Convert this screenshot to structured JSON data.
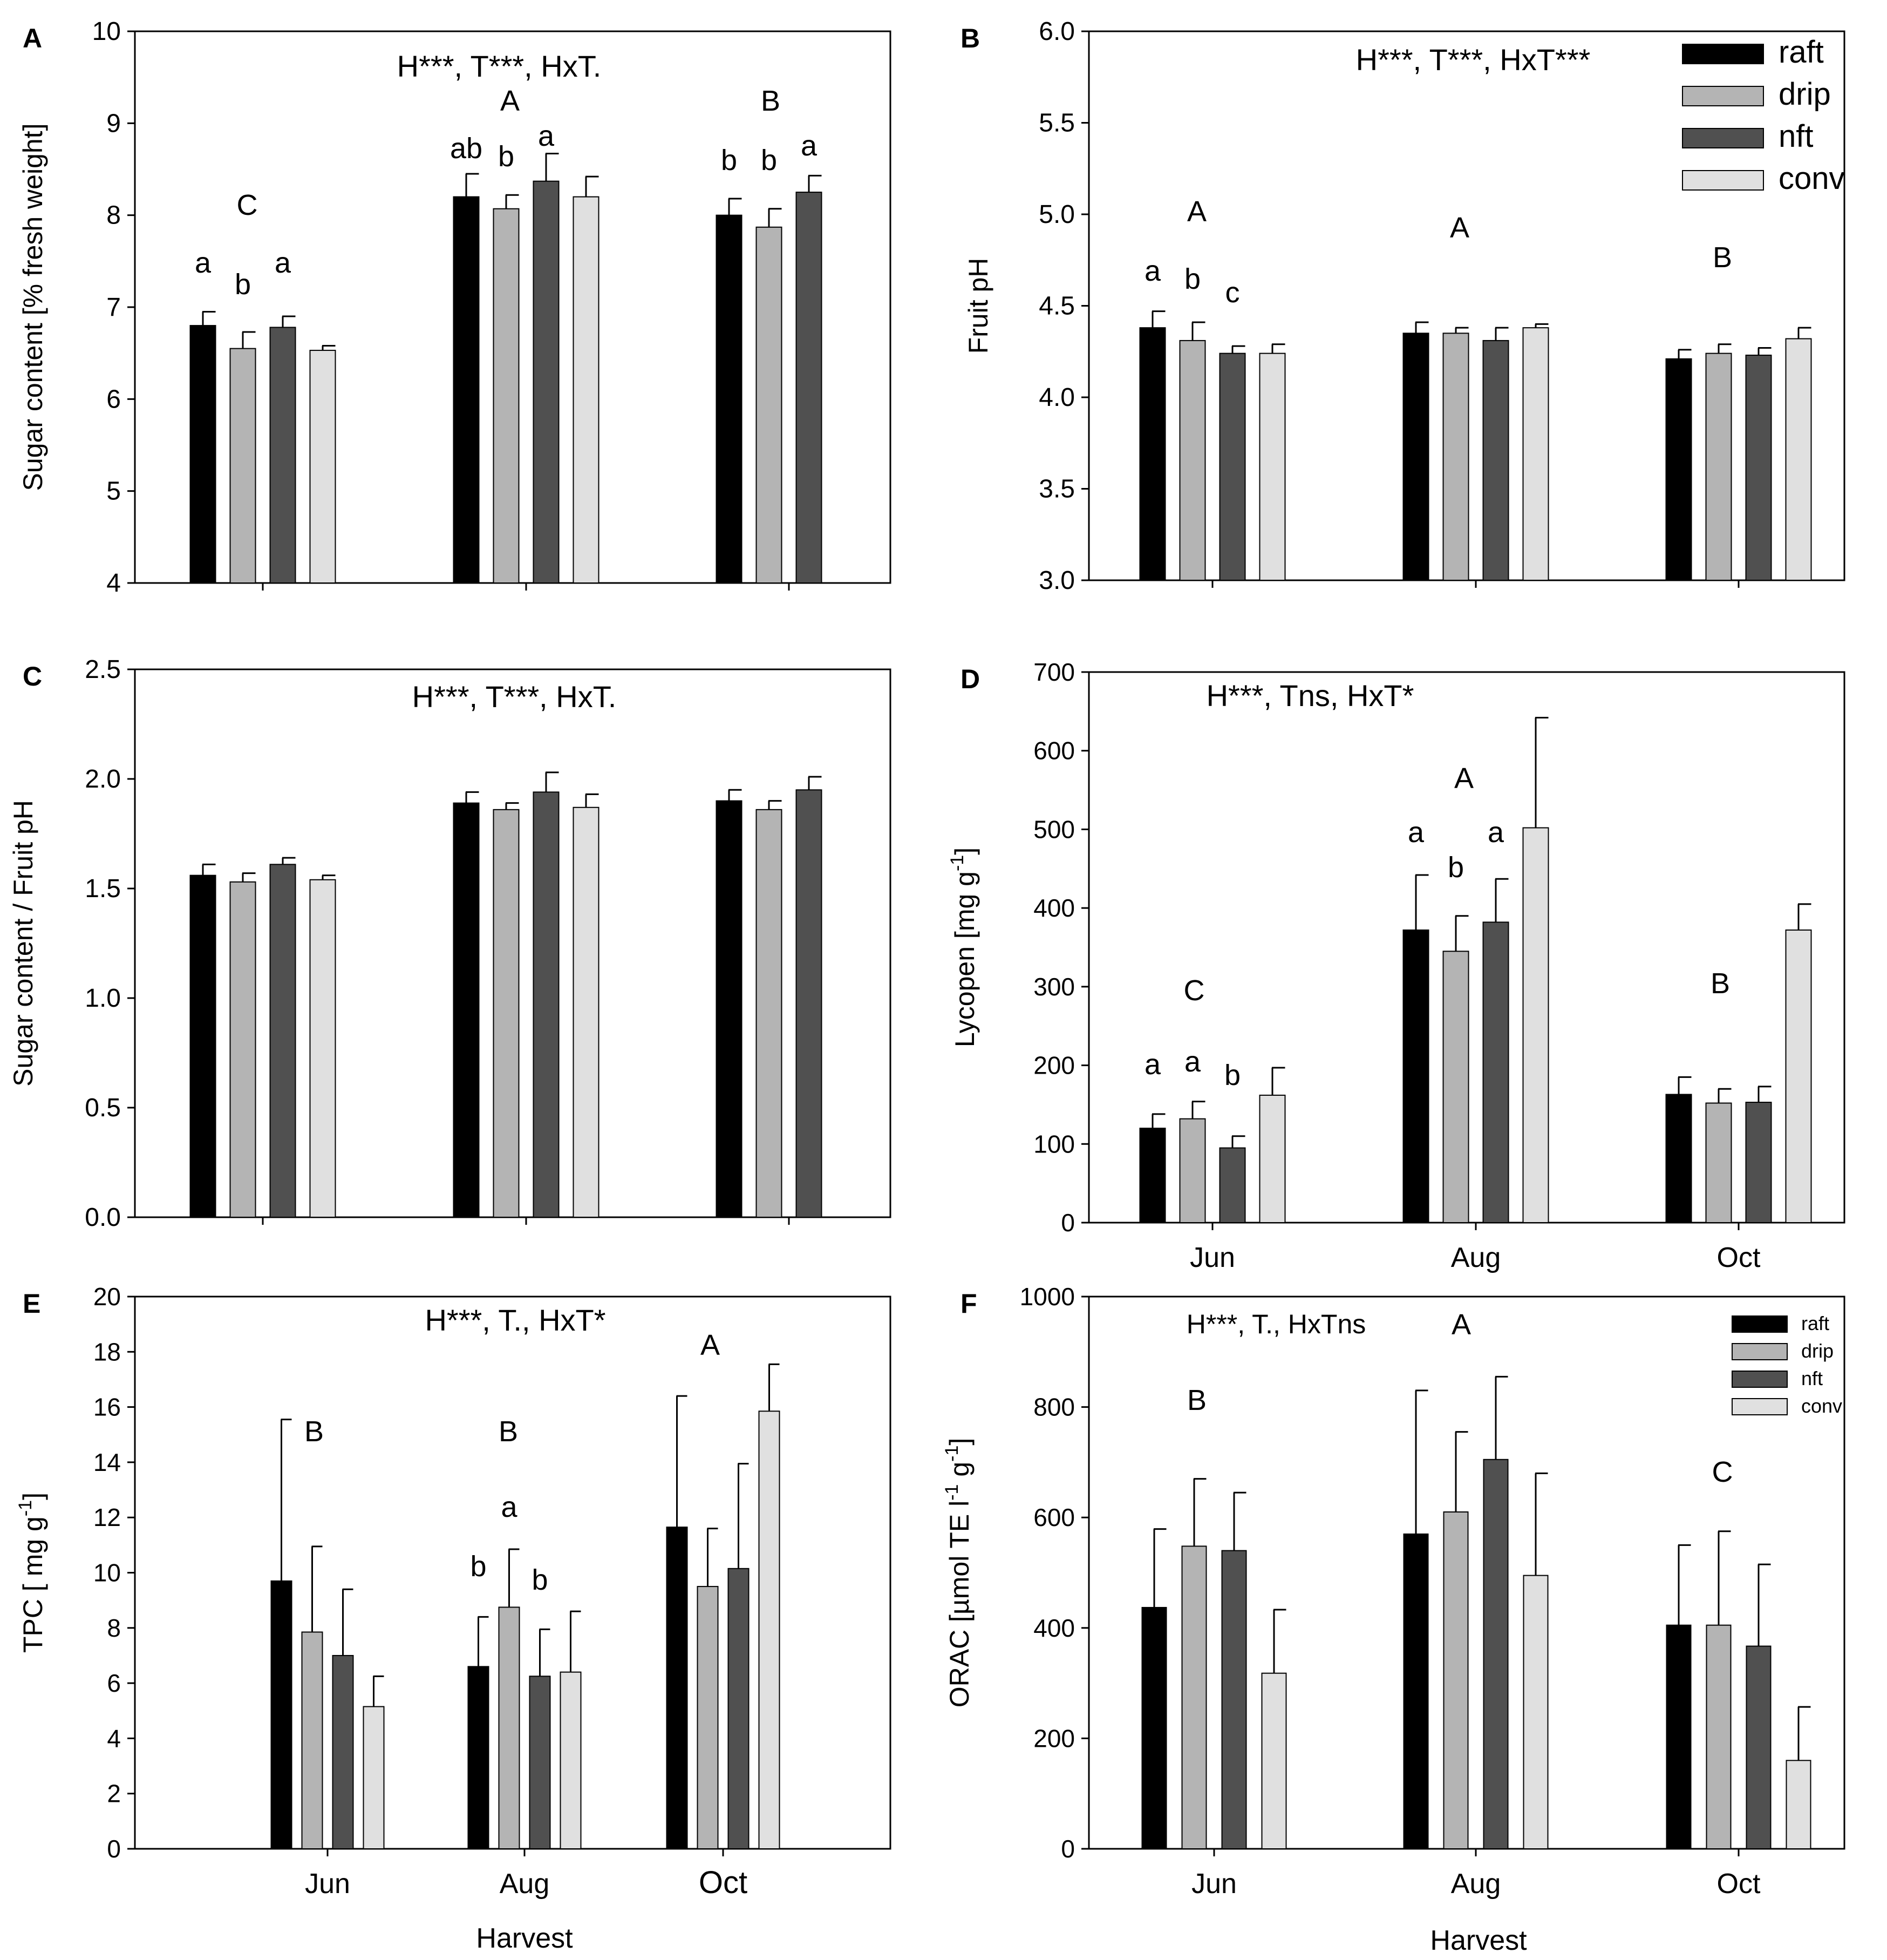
{
  "figure": {
    "panels_order": [
      "A",
      "B",
      "C",
      "D",
      "E",
      "F"
    ],
    "bottom_axis_label": "Harvest",
    "categories": [
      "Jun",
      "Aug",
      "Oct"
    ],
    "series_names": [
      "raft",
      "drip",
      "nft",
      "conv"
    ],
    "colors": {
      "raft": "#000000",
      "drip": "#b4b4b4",
      "nft": "#505050",
      "conv": "#e0e0e0"
    }
  },
  "chart_data": [
    {
      "panel": "A",
      "type": "bar",
      "panel_letter": "A",
      "title": "H***, T***, HxT.",
      "ylabel": "Sugar content [% fresh weight]",
      "ylim": [
        4,
        10
      ],
      "yticks": [
        "4",
        "5",
        "6",
        "7",
        "8",
        "9",
        "10"
      ],
      "categories": [
        "Jun",
        "Aug",
        "Oct"
      ],
      "show_xtick_labels": false,
      "legend": "none",
      "series": [
        {
          "name": "raft",
          "values": [
            6.8,
            8.2,
            8.0
          ],
          "errors": [
            0.15,
            0.25,
            0.18
          ]
        },
        {
          "name": "drip",
          "values": [
            6.55,
            8.07,
            7.87
          ],
          "errors": [
            0.18,
            0.15,
            0.2
          ]
        },
        {
          "name": "nft",
          "values": [
            6.78,
            8.37,
            8.25
          ],
          "errors": [
            0.12,
            0.3,
            0.18
          ]
        },
        {
          "name": "conv",
          "values": [
            6.53,
            8.2,
            null
          ],
          "errors": [
            0.05,
            0.22,
            null
          ]
        }
      ],
      "group_letters": [
        "C",
        "A",
        "B"
      ],
      "bar_letters": [
        [
          "a",
          "b",
          "a",
          ""
        ],
        [
          "ab",
          "b",
          "a",
          ""
        ],
        [
          "b",
          "b",
          "a",
          ""
        ]
      ]
    },
    {
      "panel": "B",
      "type": "bar",
      "panel_letter": "B",
      "title": "H***, T***, HxT***",
      "ylabel": "Fruit pH",
      "ylim": [
        3.0,
        6.0
      ],
      "yticks": [
        "3.0",
        "3.5",
        "4.0",
        "4.5",
        "5.0",
        "5.5",
        "6.0"
      ],
      "categories": [
        "Jun",
        "Aug",
        "Oct"
      ],
      "show_xtick_labels": false,
      "legend": "top-right",
      "series": [
        {
          "name": "raft",
          "values": [
            4.38,
            4.35,
            4.21
          ],
          "errors": [
            0.09,
            0.06,
            0.05
          ]
        },
        {
          "name": "drip",
          "values": [
            4.31,
            4.35,
            4.24
          ],
          "errors": [
            0.1,
            0.03,
            0.05
          ]
        },
        {
          "name": "nft",
          "values": [
            4.24,
            4.31,
            4.23
          ],
          "errors": [
            0.04,
            0.07,
            0.04
          ]
        },
        {
          "name": "conv",
          "values": [
            4.24,
            4.38,
            4.32
          ],
          "errors": [
            0.05,
            0.02,
            0.06
          ]
        }
      ],
      "group_letters": [
        "A",
        "A",
        "B"
      ],
      "bar_letters": [
        [
          "a",
          "b",
          "c",
          ""
        ],
        [
          "",
          "",
          "",
          ""
        ],
        [
          "",
          "",
          "",
          ""
        ]
      ]
    },
    {
      "panel": "C",
      "type": "bar",
      "panel_letter": "C",
      "title": "H***, T***, HxT.",
      "ylabel": "Sugar content / Fruit pH",
      "ylim": [
        0.0,
        2.5
      ],
      "yticks": [
        "0.0",
        "0.5",
        "1.0",
        "1.5",
        "2.0",
        "2.5"
      ],
      "categories": [
        "Jun",
        "Aug",
        "Oct"
      ],
      "show_xtick_labels": false,
      "legend": "none",
      "series": [
        {
          "name": "raft",
          "values": [
            1.56,
            1.89,
            1.9
          ],
          "errors": [
            0.05,
            0.05,
            0.05
          ]
        },
        {
          "name": "drip",
          "values": [
            1.53,
            1.86,
            1.86
          ],
          "errors": [
            0.04,
            0.03,
            0.04
          ]
        },
        {
          "name": "nft",
          "values": [
            1.61,
            1.94,
            1.95
          ],
          "errors": [
            0.03,
            0.09,
            0.06
          ]
        },
        {
          "name": "conv",
          "values": [
            1.54,
            1.87,
            null
          ],
          "errors": [
            0.02,
            0.06,
            null
          ]
        }
      ],
      "group_letters": [
        "",
        "",
        ""
      ],
      "bar_letters": [
        [
          "",
          "",
          "",
          ""
        ],
        [
          "",
          "",
          "",
          ""
        ],
        [
          "",
          "",
          "",
          ""
        ]
      ]
    },
    {
      "panel": "D",
      "type": "bar",
      "panel_letter": "D",
      "title": "H***, Tns, HxT*",
      "ylabel": "Lycopen [mg g-1]",
      "ylabel_base": "Lycopen [mg g",
      "ylabel_sup": "-1",
      "ylabel_end": "]",
      "ylim": [
        0,
        700
      ],
      "yticks": [
        "0",
        "100",
        "200",
        "300",
        "400",
        "500",
        "600",
        "700"
      ],
      "categories": [
        "Jun",
        "Aug",
        "Oct"
      ],
      "show_xtick_labels": true,
      "legend": "none",
      "series": [
        {
          "name": "raft",
          "values": [
            120,
            372,
            163
          ],
          "errors": [
            18,
            70,
            22
          ]
        },
        {
          "name": "drip",
          "values": [
            132,
            345,
            152
          ],
          "errors": [
            22,
            45,
            18
          ]
        },
        {
          "name": "nft",
          "values": [
            95,
            382,
            153
          ],
          "errors": [
            15,
            55,
            20
          ]
        },
        {
          "name": "conv",
          "values": [
            162,
            502,
            372
          ],
          "errors": [
            35,
            140,
            33
          ]
        }
      ],
      "group_letters": [
        "C",
        "A",
        "B"
      ],
      "bar_letters": [
        [
          "a",
          "a",
          "b",
          ""
        ],
        [
          "a",
          "b",
          "a",
          ""
        ],
        [
          "",
          "",
          "",
          ""
        ]
      ]
    },
    {
      "panel": "E",
      "type": "bar",
      "panel_letter": "E",
      "title": "H***, T., HxT*",
      "ylabel": "TPC [ mg g-1]",
      "ylabel_base": "TPC [ mg g",
      "ylabel_sup": "-1",
      "ylabel_end": "]",
      "ylim": [
        0,
        20
      ],
      "yticks": [
        "0",
        "2",
        "4",
        "6",
        "8",
        "10",
        "12",
        "14",
        "16",
        "18",
        "20"
      ],
      "categories": [
        "Jun",
        "Aug",
        "Oct"
      ],
      "show_xtick_labels": true,
      "legend": "none",
      "series": [
        {
          "name": "raft",
          "values": [
            9.7,
            6.6,
            11.65
          ],
          "errors": [
            5.85,
            1.8,
            4.75
          ]
        },
        {
          "name": "drip",
          "values": [
            7.85,
            8.75,
            9.5
          ],
          "errors": [
            3.1,
            2.1,
            2.1
          ]
        },
        {
          "name": "nft",
          "values": [
            7.0,
            6.25,
            10.15
          ],
          "errors": [
            2.4,
            1.7,
            3.8
          ]
        },
        {
          "name": "conv",
          "values": [
            5.15,
            6.4,
            15.85
          ],
          "errors": [
            1.1,
            2.2,
            1.7
          ]
        }
      ],
      "group_letters": [
        "B",
        "B",
        "A"
      ],
      "bar_letters": [
        [
          "",
          "",
          "",
          ""
        ],
        [
          "b",
          "a",
          "b",
          ""
        ],
        [
          "",
          "",
          "",
          ""
        ]
      ]
    },
    {
      "panel": "F",
      "type": "bar",
      "panel_letter": "F",
      "title": "H***, T., HxTns",
      "ylabel": "ORAC [µmol TE l-1 g-1]",
      "ylabel_base": "ORAC [",
      "ylabel_mu": "µ",
      "ylabel_mid1": "mol TE l",
      "ylabel_sup1": "-1",
      "ylabel_mid2": " g",
      "ylabel_sup2": "-1",
      "ylabel_end": "]",
      "ylim": [
        0,
        1000
      ],
      "yticks": [
        "0",
        "200",
        "400",
        "600",
        "800",
        "1000"
      ],
      "categories": [
        "Jun",
        "Aug",
        "Oct"
      ],
      "show_xtick_labels": true,
      "legend": "top-right",
      "series": [
        {
          "name": "raft",
          "values": [
            437,
            570,
            405
          ],
          "errors": [
            142,
            260,
            145
          ]
        },
        {
          "name": "drip",
          "values": [
            548,
            610,
            405
          ],
          "errors": [
            122,
            145,
            170
          ]
        },
        {
          "name": "nft",
          "values": [
            540,
            705,
            367
          ],
          "errors": [
            105,
            150,
            148
          ]
        },
        {
          "name": "conv",
          "values": [
            318,
            495,
            160
          ],
          "errors": [
            115,
            185,
            97
          ]
        }
      ],
      "group_letters": [
        "B",
        "A",
        "C"
      ],
      "bar_letters": [
        [
          "",
          "",
          "",
          ""
        ],
        [
          "",
          "",
          "",
          ""
        ],
        [
          "",
          "",
          "",
          ""
        ]
      ]
    }
  ]
}
